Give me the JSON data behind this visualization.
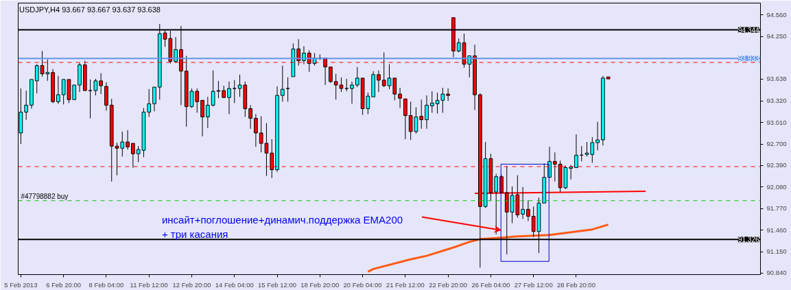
{
  "chart_data": {
    "type": "candlestick",
    "title": "USDJPY,H4  93.667 93.667 93.637 93.638",
    "categories": [
      "5 Feb 2013",
      null,
      null,
      null,
      null,
      null,
      null,
      null,
      "6 Feb 20:00",
      null,
      null,
      null,
      null,
      null,
      null,
      null,
      "8 Feb 04:00",
      null,
      null,
      null,
      null,
      null,
      null,
      null,
      "11 Feb 12:00",
      null,
      null,
      null,
      null,
      null,
      null,
      null,
      "12 Feb 20:00",
      null,
      null,
      null,
      null,
      null,
      null,
      null,
      "14 Feb 04:00",
      null,
      null,
      null,
      null,
      null,
      null,
      null,
      "15 Feb 12:00",
      null,
      null,
      null,
      null,
      null,
      null,
      null,
      "18 Feb 20:00",
      null,
      null,
      null,
      null,
      null,
      null,
      null,
      "20 Feb 04:00",
      null,
      null,
      null,
      null,
      null,
      null,
      null,
      "21 Feb 12:00",
      null,
      null,
      null,
      null,
      null,
      null,
      null,
      "22 Feb 20:00",
      null,
      null,
      null,
      null,
      null,
      null,
      null,
      "26 Feb 04:00",
      null,
      null,
      null,
      null,
      null,
      null,
      null,
      "27 Feb 12:00",
      null,
      null,
      null,
      null,
      null,
      null,
      null,
      "28 Feb 20:00",
      null,
      null,
      null,
      null,
      null,
      null,
      null,
      null,
      null,
      null,
      null,
      null,
      null,
      null,
      null,
      null,
      null,
      null,
      null,
      null,
      null,
      null,
      null,
      null,
      null,
      null,
      null,
      null,
      null,
      null,
      null,
      null,
      null,
      null
    ],
    "ohlc": [
      [
        92.86,
        93.5,
        92.7,
        93.16
      ],
      [
        93.16,
        93.47,
        93.05,
        93.26
      ],
      [
        93.26,
        93.64,
        93.21,
        93.63
      ],
      [
        93.61,
        93.85,
        93.43,
        93.83
      ],
      [
        93.83,
        94.04,
        93.67,
        93.71
      ],
      [
        93.71,
        93.92,
        93.61,
        93.73
      ],
      [
        93.73,
        93.78,
        93.29,
        93.31
      ],
      [
        93.31,
        93.68,
        93.28,
        93.41
      ],
      [
        93.41,
        93.64,
        93.27,
        93.63
      ],
      [
        93.63,
        93.64,
        93.29,
        93.34
      ],
      [
        93.34,
        93.55,
        93.34,
        93.55
      ],
      [
        93.55,
        93.87,
        93.45,
        93.84
      ],
      [
        93.84,
        93.9,
        93.47,
        93.47
      ],
      [
        93.47,
        93.63,
        93.07,
        93.47
      ],
      [
        93.47,
        93.64,
        93.4,
        93.61
      ],
      [
        93.61,
        93.72,
        93.42,
        93.54
      ],
      [
        93.53,
        93.59,
        93.18,
        93.26
      ],
      [
        93.26,
        93.35,
        92.16,
        92.67
      ],
      [
        92.67,
        92.72,
        92.25,
        92.64
      ],
      [
        92.64,
        92.88,
        92.52,
        92.73
      ],
      [
        92.73,
        92.9,
        92.62,
        92.66
      ],
      [
        92.71,
        92.71,
        92.36,
        92.56
      ],
      [
        92.56,
        92.67,
        92.44,
        92.62
      ],
      [
        92.61,
        93.22,
        92.51,
        93.16
      ],
      [
        93.16,
        93.49,
        93.09,
        93.28
      ],
      [
        93.28,
        93.53,
        93.17,
        93.52
      ],
      [
        93.52,
        94.43,
        93.34,
        94.29
      ],
      [
        94.3,
        94.35,
        94.1,
        94.21
      ],
      [
        94.22,
        94.33,
        93.86,
        93.89
      ],
      [
        93.89,
        94.24,
        93.87,
        94.06
      ],
      [
        94.06,
        94.4,
        93.26,
        93.75
      ],
      [
        93.75,
        93.97,
        92.95,
        93.24
      ],
      [
        93.24,
        93.5,
        93.22,
        93.46
      ],
      [
        93.46,
        93.5,
        93.15,
        93.31
      ],
      [
        93.33,
        93.33,
        92.81,
        93.09
      ],
      [
        93.09,
        93.38,
        92.93,
        93.26
      ],
      [
        93.26,
        93.76,
        93.24,
        93.46
      ],
      [
        93.46,
        93.61,
        93.36,
        93.47
      ],
      [
        93.47,
        93.54,
        93.36,
        93.37
      ],
      [
        93.37,
        93.6,
        93.13,
        93.5
      ],
      [
        93.5,
        93.62,
        93.29,
        93.5
      ],
      [
        93.5,
        93.7,
        93.38,
        93.55
      ],
      [
        93.55,
        93.6,
        93.09,
        93.21
      ],
      [
        93.21,
        93.26,
        92.92,
        93.07
      ],
      [
        93.07,
        93.13,
        92.66,
        92.86
      ],
      [
        92.86,
        93.1,
        92.58,
        92.71
      ],
      [
        92.71,
        93.0,
        92.24,
        92.57
      ],
      [
        92.57,
        92.77,
        92.21,
        92.33
      ],
      [
        92.33,
        93.53,
        92.3,
        93.4
      ],
      [
        93.4,
        93.83,
        93.31,
        93.49
      ],
      [
        93.5,
        93.66,
        93.31,
        93.5
      ],
      [
        93.67,
        94.15,
        93.67,
        94.07
      ],
      [
        94.07,
        94.21,
        93.83,
        93.9
      ],
      [
        93.9,
        94.11,
        93.85,
        94.01
      ],
      [
        94.01,
        94.05,
        93.74,
        93.86
      ],
      [
        93.86,
        94.01,
        93.83,
        93.94
      ],
      [
        93.94,
        93.99,
        93.91,
        93.94
      ],
      [
        93.94,
        93.94,
        93.55,
        93.81
      ],
      [
        93.81,
        93.81,
        93.58,
        93.6
      ],
      [
        93.6,
        93.71,
        93.34,
        93.55
      ],
      [
        93.55,
        93.66,
        93.45,
        93.5
      ],
      [
        93.5,
        93.64,
        93.46,
        93.5
      ],
      [
        93.5,
        93.6,
        93.28,
        93.55
      ],
      [
        93.55,
        93.81,
        93.52,
        93.65
      ],
      [
        93.65,
        93.65,
        93.12,
        93.21
      ],
      [
        93.21,
        93.44,
        93.13,
        93.39
      ],
      [
        93.38,
        93.75,
        93.38,
        93.7
      ],
      [
        93.7,
        93.76,
        93.45,
        93.62
      ],
      [
        93.62,
        94.02,
        93.52,
        93.54
      ],
      [
        93.54,
        93.85,
        93.49,
        93.65
      ],
      [
        93.65,
        93.65,
        93.33,
        93.42
      ],
      [
        93.42,
        93.51,
        93.22,
        93.36
      ],
      [
        93.35,
        93.35,
        92.77,
        93.11
      ],
      [
        93.11,
        93.31,
        92.76,
        92.88
      ],
      [
        92.88,
        93.23,
        92.85,
        93.09
      ],
      [
        93.1,
        93.34,
        92.92,
        93.05
      ],
      [
        93.05,
        93.4,
        92.92,
        93.26
      ],
      [
        93.25,
        93.46,
        93.15,
        93.29
      ],
      [
        93.28,
        93.44,
        93.14,
        93.33
      ],
      [
        93.33,
        93.51,
        93.15,
        93.42
      ],
      [
        93.42,
        93.5,
        93.32,
        93.4
      ],
      [
        94.52,
        94.52,
        93.95,
        94.04
      ],
      [
        94.04,
        94.22,
        94.02,
        94.16
      ],
      [
        94.16,
        94.29,
        93.8,
        93.85
      ],
      [
        93.85,
        93.98,
        93.66,
        93.97
      ],
      [
        93.97,
        94.13,
        93.19,
        93.41
      ],
      [
        93.41,
        93.43,
        90.92,
        91.8
      ],
      [
        91.8,
        92.73,
        91.78,
        92.49
      ],
      [
        92.49,
        92.56,
        91.88,
        92.0
      ],
      [
        92.01,
        92.27,
        91.4,
        92.23
      ],
      [
        92.23,
        92.26,
        91.99,
        92.0
      ],
      [
        92.0,
        92.38,
        91.11,
        91.72
      ],
      [
        91.72,
        92.09,
        91.56,
        91.96
      ],
      [
        91.97,
        92.25,
        91.64,
        91.68
      ],
      [
        91.69,
        92.08,
        91.62,
        91.76
      ],
      [
        91.76,
        91.89,
        91.59,
        91.66
      ],
      [
        91.66,
        91.8,
        91.36,
        91.44
      ],
      [
        91.44,
        91.93,
        91.13,
        91.85
      ],
      [
        91.85,
        92.42,
        91.85,
        92.22
      ],
      [
        92.22,
        92.66,
        92.22,
        92.45
      ],
      [
        92.45,
        92.58,
        92.16,
        92.41
      ],
      [
        92.41,
        92.46,
        92.01,
        92.07
      ],
      [
        92.07,
        92.39,
        92.05,
        92.36
      ],
      [
        92.35,
        92.4,
        92.19,
        92.37
      ],
      [
        92.36,
        92.84,
        92.36,
        92.54
      ],
      [
        92.54,
        92.67,
        92.45,
        92.54
      ],
      [
        92.55,
        92.73,
        92.52,
        92.57
      ],
      [
        92.55,
        92.8,
        92.43,
        92.72
      ],
      [
        92.72,
        93.02,
        92.61,
        92.76
      ],
      [
        92.76,
        93.68,
        92.68,
        93.65
      ],
      [
        93.667,
        93.667,
        93.637,
        93.638
      ],
      null,
      null,
      null,
      null,
      null,
      null,
      null,
      null,
      null,
      null,
      null,
      null,
      null,
      null,
      null,
      null,
      null,
      null,
      null,
      null,
      null,
      null,
      null,
      null,
      null,
      null,
      null,
      null
    ],
    "colors": [
      "#00ffff",
      "#00ffff",
      "#00ffff",
      "#00ffff",
      "#ff0000",
      "#00ffff",
      "#ff0000",
      "#00ffff",
      "#00ffff",
      "#ff0000",
      "#00ffff",
      "#00ffff",
      "#ff0000",
      "#000000",
      "#00ffff",
      "#ff0000",
      "#ff0000",
      "#ff0000",
      "#ff0000",
      "#00ffff",
      "#ff0000",
      "#ff0000",
      "#00ffff",
      "#00ffff",
      "#00ffff",
      "#00ffff",
      "#00ffff",
      "#ff0000",
      "#ff0000",
      "#00ffff",
      "#ff0000",
      "#ff0000",
      "#00ffff",
      "#ff0000",
      "#ff0000",
      "#00ffff",
      "#00ffff",
      "#00ffff",
      "#ff0000",
      "#00ffff",
      "#000000",
      "#00ffff",
      "#ff0000",
      "#ff0000",
      "#ff0000",
      "#ff0000",
      "#ff0000",
      "#ff0000",
      "#00ffff",
      "#00ffff",
      "#000000",
      "#00ffff",
      "#ff0000",
      "#00ffff",
      "#ff0000",
      "#00ffff",
      "#000000",
      "#ff0000",
      "#ff0000",
      "#ff0000",
      "#ff0000",
      "#000000",
      "#00ffff",
      "#00ffff",
      "#ff0000",
      "#00ffff",
      "#00ffff",
      "#ff0000",
      "#ff0000",
      "#00ffff",
      "#ff0000",
      "#ff0000",
      "#ff0000",
      "#ff0000",
      "#00ffff",
      "#ff0000",
      "#00ffff",
      "#00ffff",
      "#00ffff",
      "#00ffff",
      "#ff0000",
      "#ff0000",
      "#00ffff",
      "#ff0000",
      "#00ffff",
      "#ff0000",
      "#ff0000",
      "#00ffff",
      "#ff0000",
      "#00ffff",
      "#ff0000",
      "#ff0000",
      "#00ffff",
      "#ff0000",
      "#00ffff",
      "#ff0000",
      "#ff0000",
      "#00ffff",
      "#00ffff",
      "#00ffff",
      "#ff0000",
      "#ff0000",
      "#00ffff",
      "#00ffff",
      "#00ffff",
      "#000000",
      "#00ffff",
      "#00ffff",
      "#00ffff",
      "#00ffff",
      "#ff0000",
      null,
      null,
      null,
      null,
      null,
      null,
      null,
      null,
      null,
      null,
      null,
      null,
      null,
      null,
      null,
      null,
      null,
      null,
      null,
      null,
      null,
      null,
      null,
      null,
      null,
      null,
      null,
      null
    ],
    "series": [
      {
        "type": "line",
        "color": "#ff5a14",
        "values": [
          null,
          null,
          null,
          null,
          null,
          null,
          null,
          null,
          null,
          null,
          null,
          null,
          null,
          null,
          null,
          null,
          null,
          null,
          null,
          null,
          null,
          null,
          null,
          null,
          null,
          null,
          null,
          null,
          null,
          null,
          null,
          null,
          null,
          null,
          null,
          null,
          null,
          null,
          null,
          null,
          null,
          null,
          null,
          null,
          null,
          null,
          null,
          null,
          null,
          null,
          null,
          null,
          null,
          null,
          null,
          null,
          null,
          null,
          null,
          null,
          null,
          null,
          null,
          null,
          null,
          90.86,
          90.9,
          null,
          null,
          null,
          null,
          null,
          null,
          91.04,
          null,
          null,
          91.09,
          null,
          null,
          null,
          null,
          91.21,
          null,
          null,
          91.29,
          null,
          91.33,
          null,
          null,
          null,
          91.35,
          null,
          null,
          91.37,
          null,
          null,
          null,
          null,
          null,
          91.39,
          null,
          null,
          null,
          91.43,
          null,
          null,
          null,
          91.47,
          null,
          null,
          91.54,
          null,
          null,
          null,
          null,
          null,
          null,
          null,
          null,
          null,
          null,
          null,
          null,
          null,
          null,
          null,
          null,
          null,
          null,
          null,
          null,
          null,
          null,
          null,
          null,
          null,
          null,
          null,
          null
        ]
      },
      {
        "type": "line",
        "color": "#ff0000",
        "values": [
          null,
          null,
          null,
          null,
          null,
          null,
          null,
          null,
          null,
          null,
          null,
          null,
          null,
          null,
          null,
          null,
          null,
          null,
          null,
          null,
          null,
          null,
          null,
          null,
          null,
          null,
          null,
          null,
          null,
          null,
          null,
          null,
          null,
          null,
          null,
          null,
          null,
          null,
          null,
          null,
          null,
          null,
          null,
          null,
          null,
          null,
          null,
          null,
          null,
          null,
          null,
          null,
          null,
          null,
          null,
          null,
          null,
          null,
          null,
          null,
          null,
          null,
          null,
          null,
          null,
          null,
          null,
          null,
          null,
          null,
          null,
          null,
          null,
          null,
          null,
          null,
          null,
          null,
          null,
          null,
          null,
          null,
          null,
          null,
          null,
          91.99,
          null,
          null,
          null,
          null,
          null,
          null,
          null,
          null,
          null,
          null,
          null,
          null,
          null,
          null,
          null,
          null,
          null,
          null,
          null,
          null,
          null,
          null,
          null,
          null,
          null,
          null,
          null,
          null,
          null,
          null,
          null,
          92.02,
          null,
          null,
          null,
          null,
          null,
          null,
          null,
          null,
          null,
          null,
          null,
          null,
          null,
          null,
          null,
          null,
          null,
          null,
          null,
          null,
          null
        ]
      }
    ],
    "ylim": [
      90.82,
      94.73
    ],
    "yticks": [
      {
        "value": 90.84,
        "label": "90.840"
      },
      {
        "value": 91.15,
        "label": "91.150"
      },
      {
        "value": 91.46,
        "label": "91.460"
      },
      {
        "value": 91.77,
        "label": "91.770"
      },
      {
        "value": 92.08,
        "label": "92.080"
      },
      {
        "value": 92.39,
        "label": "92.390"
      },
      {
        "value": 92.7,
        "label": "92.700"
      },
      {
        "value": 93.01,
        "label": "93.010"
      },
      {
        "value": 93.32,
        "label": "93.320"
      },
      {
        "value": 93.638,
        "label": "93.638"
      },
      {
        "value": 94.25,
        "label": "94.250"
      },
      {
        "value": 94.56,
        "label": "94.560"
      }
    ],
    "ref_lines": [
      {
        "axis": "y",
        "value": 94.344,
        "label": "94.344",
        "color": "#000000",
        "line_style": "solid"
      },
      {
        "axis": "y",
        "value": 93.933,
        "label": "93.933",
        "color": "#6495ed",
        "line_style": "solid"
      },
      {
        "axis": "y",
        "value": 93.875,
        "color": "#ff0000",
        "line_style": "dashed"
      },
      {
        "axis": "y",
        "value": 92.375,
        "color": "#ff0000",
        "line_style": "dashed"
      },
      {
        "axis": "y",
        "value": 91.884,
        "label": "#47798882 buy",
        "color": "#00c800",
        "line_style": "dashed"
      },
      {
        "axis": "y",
        "value": 91.326,
        "label": "91.326",
        "color": "#000000",
        "line_style": "solid"
      }
    ],
    "annotations": [
      "инсайт+поглошение+динамич.поддержка EMA200\n+ три касания"
    ]
  }
}
